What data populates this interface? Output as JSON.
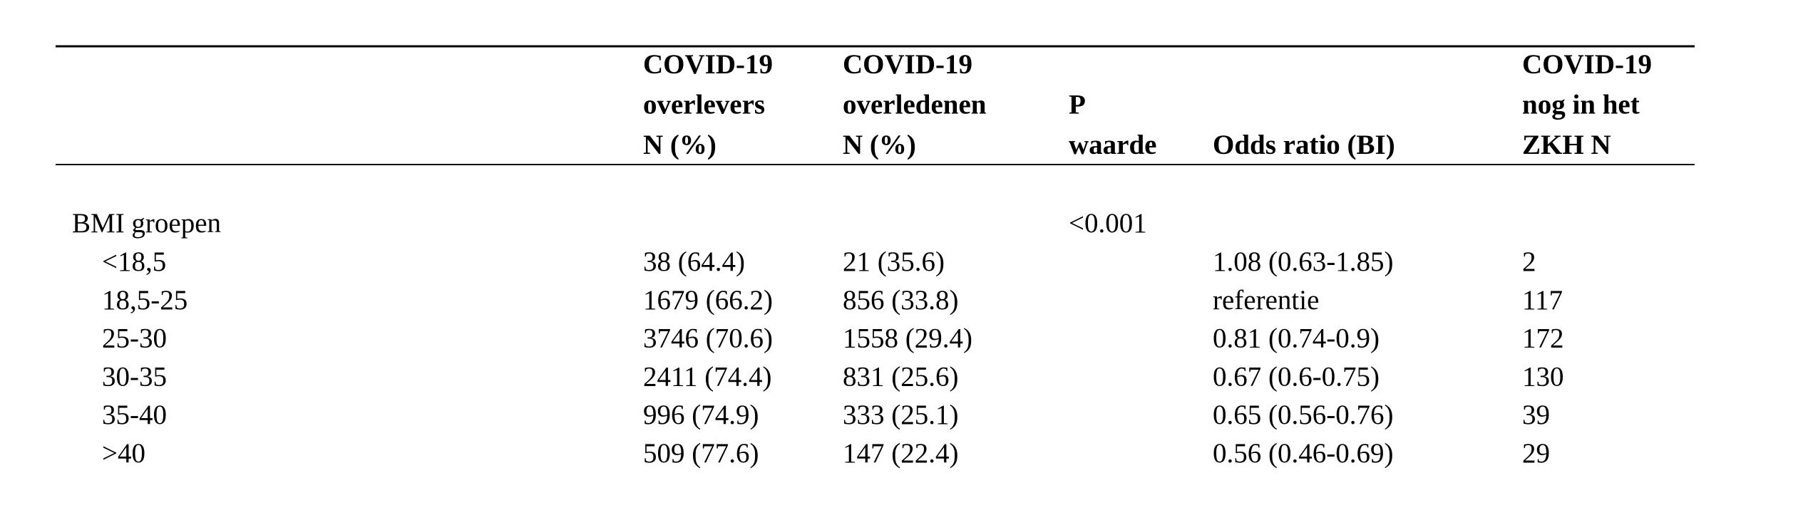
{
  "table": {
    "header": [
      {
        "lines": [
          "COVID-19",
          "overlevers",
          "N (%)"
        ]
      },
      {
        "lines": [
          "COVID-19",
          "overledenen",
          "N (%)"
        ]
      },
      {
        "lines": [
          "P",
          "waarde"
        ]
      },
      {
        "lines": [
          "Odds ratio (BI)"
        ]
      },
      {
        "lines": [
          "COVID-19",
          "nog in het",
          "ZKH N"
        ]
      }
    ],
    "group": {
      "label": "BMI groepen",
      "p_value": "<0.001"
    },
    "rows": [
      [
        "<18,5",
        "38 (64.4)",
        "21 (35.6)",
        "1.08 (0.63-1.85)",
        "2"
      ],
      [
        "18,5-25",
        "1679 (66.2)",
        "856 (33.8)",
        "referentie",
        "117"
      ],
      [
        "25-30",
        "3746 (70.6)",
        "1558 (29.4)",
        "0.81 (0.74-0.9)",
        "172"
      ],
      [
        "30-35",
        "2411 (74.4)",
        "831 (25.6)",
        "0.67 (0.6-0.75)",
        "130"
      ],
      [
        "35-40",
        "996 (74.9)",
        "333 (25.1)",
        "0.65 (0.56-0.76)",
        "39"
      ],
      [
        ">40",
        "509 (77.6)",
        "147 (22.4)",
        "0.56 (0.46-0.69)",
        "29"
      ]
    ]
  }
}
